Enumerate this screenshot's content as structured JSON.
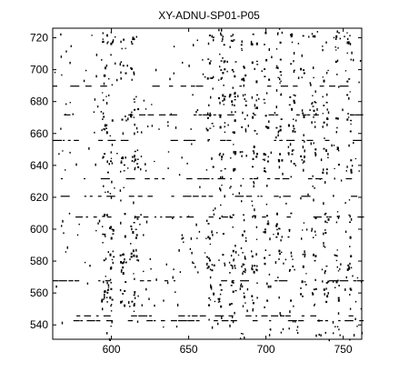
{
  "chart_data": {
    "type": "heatmap",
    "title": "XY-ADNU-SP01-P05",
    "xlim": [
      562,
      762
    ],
    "ylim": [
      531,
      726
    ],
    "x_ticks": [
      600,
      650,
      700,
      750
    ],
    "y_ticks": [
      540,
      560,
      580,
      600,
      620,
      640,
      660,
      680,
      700,
      720
    ],
    "grid": false,
    "colors": {
      "background": "#ffffff",
      "marks": "#000000",
      "axis": "#000000"
    },
    "dense_x_bands": [
      [
        593,
        601
      ],
      [
        605,
        609
      ],
      [
        612,
        617
      ],
      [
        661,
        666
      ],
      [
        669,
        673
      ],
      [
        676,
        680
      ],
      [
        683,
        687
      ],
      [
        690,
        694
      ],
      [
        698,
        702
      ],
      [
        706,
        710
      ],
      [
        714,
        718
      ],
      [
        722,
        725
      ],
      [
        729,
        732
      ],
      [
        736,
        740
      ],
      [
        744,
        747
      ],
      [
        752,
        755
      ]
    ],
    "dense_y_bands": [
      [
        552,
        568
      ],
      [
        573,
        588
      ],
      [
        594,
        611
      ],
      [
        636,
        653
      ],
      [
        661,
        685
      ],
      [
        693,
        708
      ],
      [
        716,
        724
      ]
    ],
    "horizontal_streaks_y": [
      543,
      546,
      568,
      608,
      621,
      632,
      656,
      672,
      690
    ]
  }
}
